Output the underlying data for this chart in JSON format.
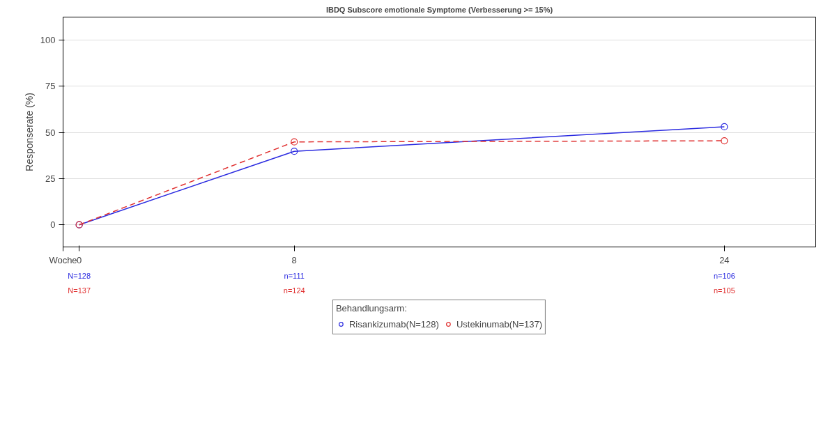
{
  "chart_data": {
    "type": "line",
    "title": "IBDQ Subscore emotionale Symptome (Verbesserung >= 15%)",
    "xlabel": "Woche",
    "ylabel": "Responserate (%)",
    "legend_title": "Behandlungsarm:",
    "x": [
      0,
      8,
      24
    ],
    "series": [
      {
        "name": "Risankizumab(N=128)",
        "color": "#2a2ae0",
        "values": [
          0,
          39.8,
          53.1
        ],
        "line_style": "solid"
      },
      {
        "name": "Ustekinumab(N=137)",
        "color": "#e03030",
        "values": [
          0,
          44.9,
          45.5
        ],
        "line_style": "dashed"
      }
    ],
    "xlim": [
      -0.6,
      27.4
    ],
    "ylim": [
      -12,
      112.5
    ],
    "xticks": [
      0,
      8,
      24
    ],
    "yticks": [
      0,
      25,
      50,
      75,
      100
    ],
    "annotations": [
      "N=128",
      "N=137",
      "n=111",
      "n=124",
      "n=106",
      "n=105"
    ],
    "grid": "y",
    "legend": "bottom",
    "marker": "circle"
  }
}
